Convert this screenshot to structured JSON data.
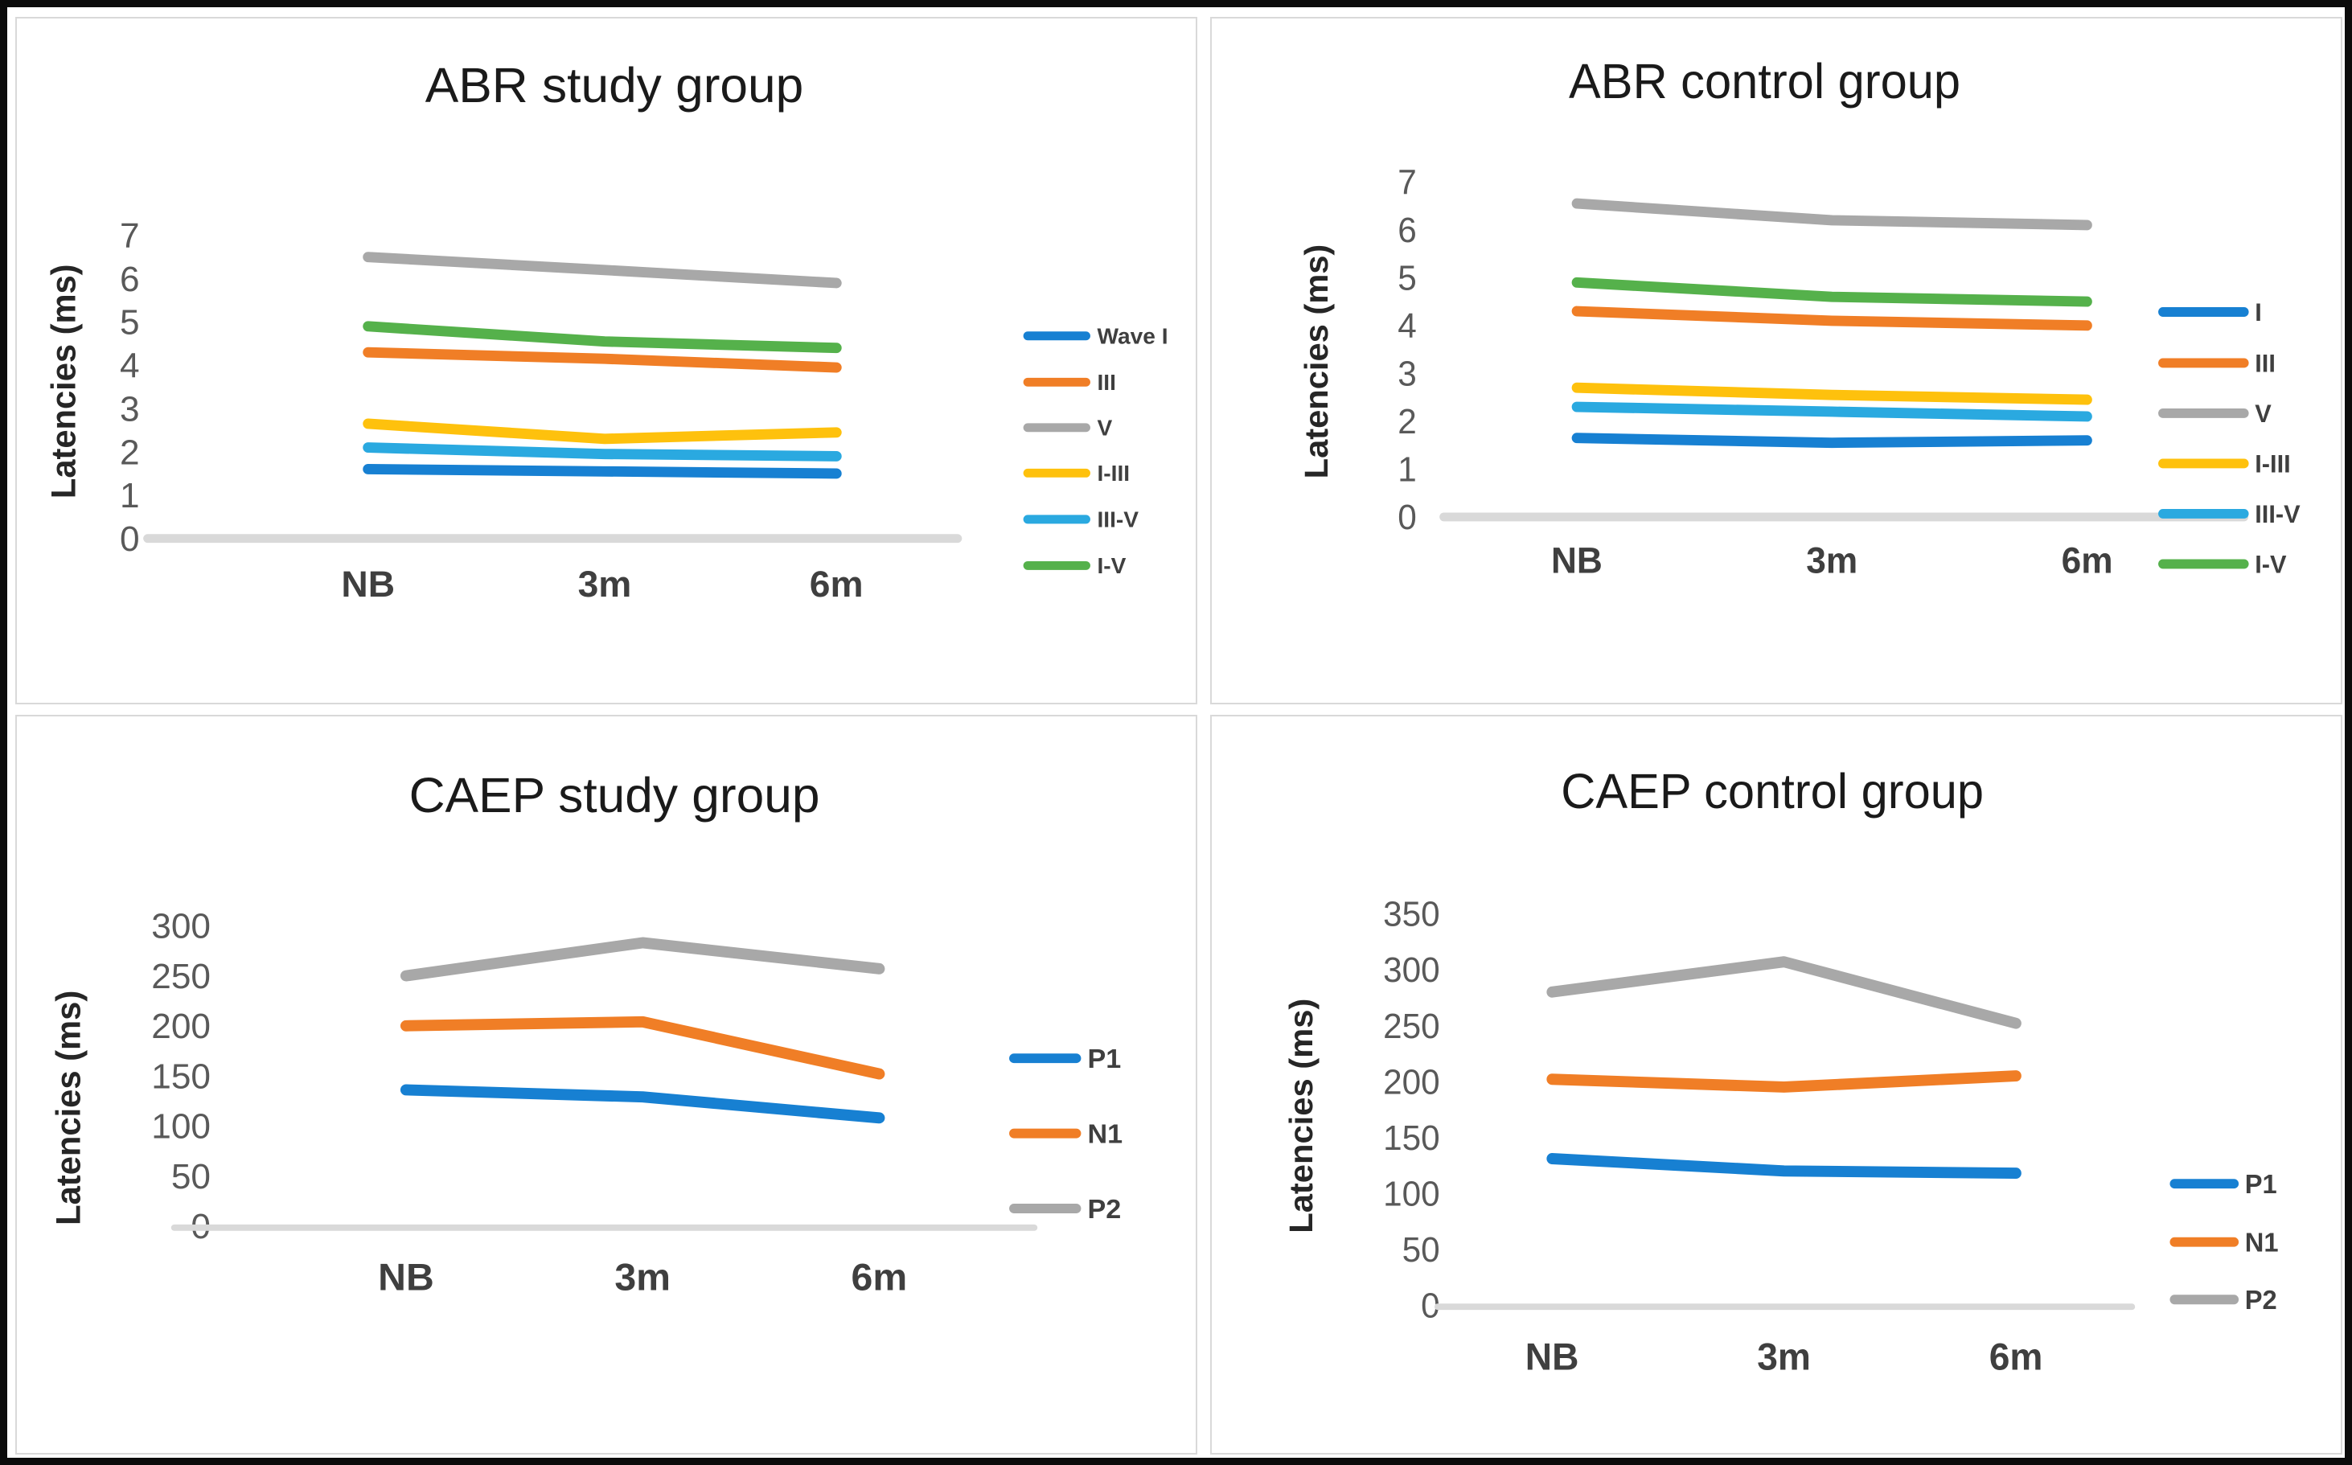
{
  "figure": {
    "background": "#ffffff",
    "frame_color": "#0b0b0b",
    "panel_border_color": "#d9d9d9",
    "axis_line_color": "#d9d9d9",
    "tick_label_color": "#595959",
    "category_label_color": "#3f3f3f",
    "title_color": "#1a1a1a"
  },
  "chart_data": [
    {
      "type": "line",
      "title": "ABR study group",
      "ylabel": "Latencies (ms)",
      "xlabel": "",
      "categories": [
        "NB",
        "3m",
        "6m"
      ],
      "yticks": [
        7,
        6,
        5,
        4,
        3,
        2,
        1,
        0
      ],
      "ylim": [
        0,
        7
      ],
      "grid": false,
      "legend_position": "right",
      "series": [
        {
          "name": "Wave I",
          "color": "#1780d2",
          "values": [
            1.6,
            1.55,
            1.5
          ]
        },
        {
          "name": "III",
          "color": "#f07e26",
          "values": [
            4.3,
            4.15,
            3.95
          ]
        },
        {
          "name": "V",
          "color": "#a8a8a8",
          "values": [
            6.5,
            6.2,
            5.9
          ]
        },
        {
          "name": "I-III",
          "color": "#fec10d",
          "values": [
            2.65,
            2.3,
            2.45
          ]
        },
        {
          "name": "III-V",
          "color": "#2aa9e0",
          "values": [
            2.1,
            1.95,
            1.9
          ]
        },
        {
          "name": "I-V",
          "color": "#55b14b",
          "values": [
            4.9,
            4.55,
            4.4
          ]
        }
      ]
    },
    {
      "type": "line",
      "title": "ABR control group",
      "ylabel": "Latencies (ms)",
      "xlabel": "",
      "categories": [
        "NB",
        "3m",
        "6m"
      ],
      "yticks": [
        7,
        6,
        5,
        4,
        3,
        2,
        1,
        0
      ],
      "ylim": [
        0,
        7
      ],
      "grid": false,
      "legend_position": "right",
      "series": [
        {
          "name": "I",
          "color": "#1780d2",
          "values": [
            1.65,
            1.55,
            1.6
          ]
        },
        {
          "name": "III",
          "color": "#f07e26",
          "values": [
            4.3,
            4.1,
            4.0
          ]
        },
        {
          "name": "V",
          "color": "#a8a8a8",
          "values": [
            6.55,
            6.2,
            6.1
          ]
        },
        {
          "name": "I-III",
          "color": "#fec10d",
          "values": [
            2.7,
            2.55,
            2.45
          ]
        },
        {
          "name": "III-V",
          "color": "#2aa9e0",
          "values": [
            2.3,
            2.2,
            2.1
          ]
        },
        {
          "name": "I-V",
          "color": "#55b14b",
          "values": [
            4.9,
            4.6,
            4.5
          ]
        }
      ]
    },
    {
      "type": "line",
      "title": "CAEP study group",
      "ylabel": "Latencies (ms)",
      "xlabel": "",
      "categories": [
        "NB",
        "3m",
        "6m"
      ],
      "yticks": [
        300,
        250,
        200,
        150,
        100,
        50,
        0
      ],
      "ylim": [
        0,
        300
      ],
      "grid": false,
      "legend_position": "right",
      "series": [
        {
          "name": "P1",
          "color": "#1780d2",
          "values": [
            136,
            129,
            108
          ]
        },
        {
          "name": "N1",
          "color": "#f07e26",
          "values": [
            200,
            204,
            152
          ]
        },
        {
          "name": "P2",
          "color": "#a8a8a8",
          "values": [
            250,
            283,
            257
          ]
        }
      ]
    },
    {
      "type": "line",
      "title": "CAEP control group",
      "ylabel": "Latencies (ms)",
      "xlabel": "",
      "categories": [
        "NB",
        "3m",
        "6m"
      ],
      "yticks": [
        350,
        300,
        250,
        200,
        150,
        100,
        50,
        0
      ],
      "ylim": [
        0,
        350
      ],
      "grid": false,
      "legend_position": "right",
      "series": [
        {
          "name": "P1",
          "color": "#1780d2",
          "values": [
            131,
            120,
            118
          ]
        },
        {
          "name": "N1",
          "color": "#f07e26",
          "values": [
            202,
            195,
            205
          ]
        },
        {
          "name": "P2",
          "color": "#a8a8a8",
          "values": [
            280,
            307,
            252
          ]
        }
      ]
    }
  ]
}
